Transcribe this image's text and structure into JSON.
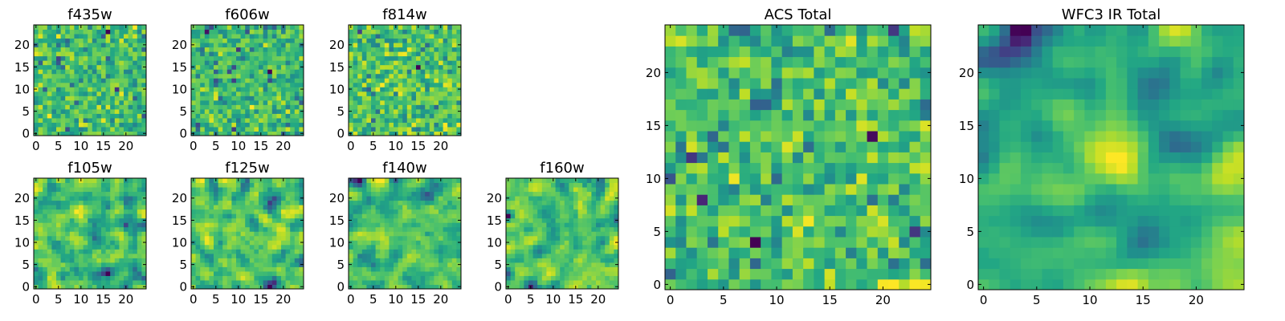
{
  "chart_data": [
    {
      "type": "heatmap",
      "title": "f435w",
      "xlabel": "",
      "ylabel": "",
      "grid_size": 25,
      "colormap": "viridis",
      "xticks": [
        0,
        5,
        10,
        15,
        20
      ],
      "yticks": [
        0,
        5,
        10,
        15,
        20
      ],
      "xlim": [
        -0.5,
        24.5
      ],
      "ylim": [
        -0.5,
        24.5
      ],
      "noise_seed": 11,
      "smoothness": 0,
      "peak_strength": 0
    },
    {
      "type": "heatmap",
      "title": "f606w",
      "xlabel": "",
      "ylabel": "",
      "grid_size": 25,
      "colormap": "viridis",
      "xticks": [
        0,
        5,
        10,
        15,
        20
      ],
      "yticks": [
        0,
        5,
        10,
        15,
        20
      ],
      "xlim": [
        -0.5,
        24.5
      ],
      "ylim": [
        -0.5,
        24.5
      ],
      "noise_seed": 23,
      "smoothness": 0,
      "peak_strength": 0
    },
    {
      "type": "heatmap",
      "title": "f814w",
      "xlabel": "",
      "ylabel": "",
      "grid_size": 25,
      "colormap": "viridis",
      "xticks": [
        0,
        5,
        10,
        15,
        20
      ],
      "yticks": [
        0,
        5,
        10,
        15,
        20
      ],
      "xlim": [
        -0.5,
        24.5
      ],
      "ylim": [
        -0.5,
        24.5
      ],
      "noise_seed": 37,
      "smoothness": 0,
      "peak_strength": 0
    },
    {
      "type": "heatmap",
      "title": "f105w",
      "xlabel": "",
      "ylabel": "",
      "grid_size": 25,
      "colormap": "viridis",
      "xticks": [
        0,
        5,
        10,
        15,
        20
      ],
      "yticks": [
        0,
        5,
        10,
        15,
        20
      ],
      "xlim": [
        -0.5,
        24.5
      ],
      "ylim": [
        -0.5,
        24.5
      ],
      "noise_seed": 41,
      "smoothness": 1,
      "peak_strength": 0
    },
    {
      "type": "heatmap",
      "title": "f125w",
      "xlabel": "",
      "ylabel": "",
      "grid_size": 25,
      "colormap": "viridis",
      "xticks": [
        0,
        5,
        10,
        15,
        20
      ],
      "yticks": [
        0,
        5,
        10,
        15,
        20
      ],
      "xlim": [
        -0.5,
        24.5
      ],
      "ylim": [
        -0.5,
        24.5
      ],
      "noise_seed": 53,
      "smoothness": 1,
      "peak_strength": 0
    },
    {
      "type": "heatmap",
      "title": "f140w",
      "xlabel": "",
      "ylabel": "",
      "grid_size": 25,
      "colormap": "viridis",
      "xticks": [
        0,
        5,
        10,
        15,
        20
      ],
      "yticks": [
        0,
        5,
        10,
        15,
        20
      ],
      "xlim": [
        -0.5,
        24.5
      ],
      "ylim": [
        -0.5,
        24.5
      ],
      "noise_seed": 67,
      "smoothness": 1,
      "peak_strength": 0
    },
    {
      "type": "heatmap",
      "title": "f160w",
      "xlabel": "",
      "ylabel": "",
      "grid_size": 25,
      "colormap": "viridis",
      "xticks": [
        0,
        5,
        10,
        15,
        20
      ],
      "yticks": [
        0,
        5,
        10,
        15,
        20
      ],
      "xlim": [
        -0.5,
        24.5
      ],
      "ylim": [
        -0.5,
        24.5
      ],
      "noise_seed": 71,
      "smoothness": 1,
      "peak_strength": 0
    },
    {
      "type": "heatmap",
      "title": "ACS Total",
      "xlabel": "",
      "ylabel": "",
      "grid_size": 25,
      "colormap": "viridis",
      "xticks": [
        0,
        5,
        10,
        15,
        20
      ],
      "yticks": [
        0,
        5,
        10,
        15,
        20
      ],
      "xlim": [
        -0.5,
        24.5
      ],
      "ylim": [
        -0.5,
        24.5
      ],
      "noise_seed": 83,
      "smoothness": 0,
      "peak_strength": 0
    },
    {
      "type": "heatmap",
      "title": "WFC3 IR Total",
      "xlabel": "",
      "ylabel": "",
      "grid_size": 25,
      "colormap": "viridis",
      "xticks": [
        0,
        5,
        10,
        15,
        20
      ],
      "yticks": [
        0,
        5,
        10,
        15,
        20
      ],
      "xlim": [
        -0.5,
        24.5
      ],
      "ylim": [
        -0.5,
        24.5
      ],
      "noise_seed": 97,
      "smoothness": 2,
      "peak_strength": 1.2,
      "peak_center": [
        12,
        12
      ],
      "peak_width": 2.2
    }
  ]
}
